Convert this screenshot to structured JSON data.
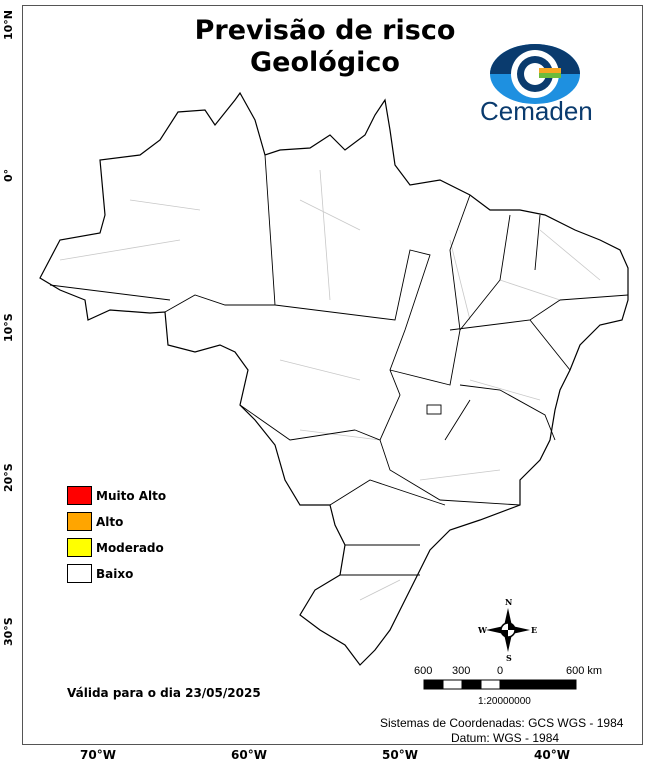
{
  "title_line1": "Previsão de risco",
  "title_line2": "Geológico",
  "logo_text": "Cemaden",
  "legend": [
    {
      "label": "Muito Alto",
      "color": "#ff0000"
    },
    {
      "label": "Alto",
      "color": "#ffa500"
    },
    {
      "label": "Moderado",
      "color": "#ffff00"
    },
    {
      "label": "Baixo",
      "color": "#ffffff"
    }
  ],
  "valid_text": "Válida para o dia 23/05/2025",
  "compass": {
    "n": "N",
    "s": "S",
    "e": "E",
    "w": "W"
  },
  "scale": {
    "labels": [
      "600",
      "300",
      "0",
      "600 km"
    ],
    "ratio": "1:20000000"
  },
  "coord_system": "Sistemas de Coordenadas: GCS WGS - 1984",
  "datum": "Datum: WGS - 1984",
  "longitude_labels": [
    "70°W",
    "60°W",
    "50°W",
    "40°W"
  ],
  "latitude_labels": [
    "10°N",
    "0°",
    "10°S",
    "20°S",
    "30°S"
  ],
  "risk_level_all_regions": "Baixo"
}
